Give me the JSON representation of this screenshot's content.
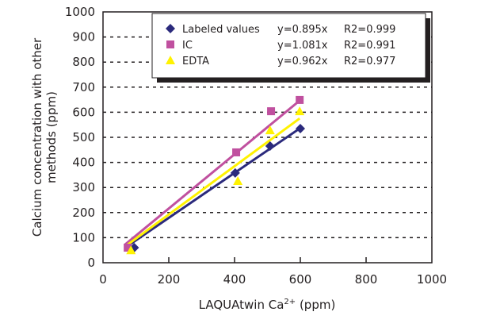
{
  "chart_data": {
    "type": "scatter",
    "title": "",
    "xlabel": "LAQUAtwin Ca",
    "xlabel_sup": "2+",
    "xlabel_suffix": " (ppm)",
    "ylabel_line1": "Calcium concentration with other",
    "ylabel_line2": "methods (ppm)",
    "xlim": [
      0,
      1000
    ],
    "ylim": [
      0,
      1000
    ],
    "xticks": [
      "0",
      "200",
      "400",
      "600",
      "800",
      "1000"
    ],
    "yticks": [
      "0",
      "100",
      "200",
      "300",
      "400",
      "500",
      "600",
      "700",
      "800",
      "900",
      "1000"
    ],
    "grid": "horizontal-dashed",
    "legend_position": "top",
    "series": [
      {
        "name": "Labeled values",
        "marker": "diamond",
        "color": "#2b2a7c",
        "equation": "y=0.895x",
        "r2": "R2=0.999",
        "slope": 0.895,
        "x": [
          95,
          402,
          508,
          600
        ],
        "y": [
          60,
          358,
          465,
          535
        ]
      },
      {
        "name": "IC",
        "marker": "square",
        "color": "#c0509f",
        "equation": "y=1.081x",
        "r2": "R2=0.991",
        "slope": 1.081,
        "x": [
          75,
          405,
          511,
          598
        ],
        "y": [
          60,
          440,
          604,
          649
        ]
      },
      {
        "name": "EDTA",
        "marker": "triangle",
        "color": "#fff200",
        "equation": "y=0.962x",
        "r2": "R2=0.977",
        "slope": 0.962,
        "x": [
          85,
          410,
          508,
          598
        ],
        "y": [
          50,
          326,
          528,
          604
        ]
      }
    ]
  }
}
